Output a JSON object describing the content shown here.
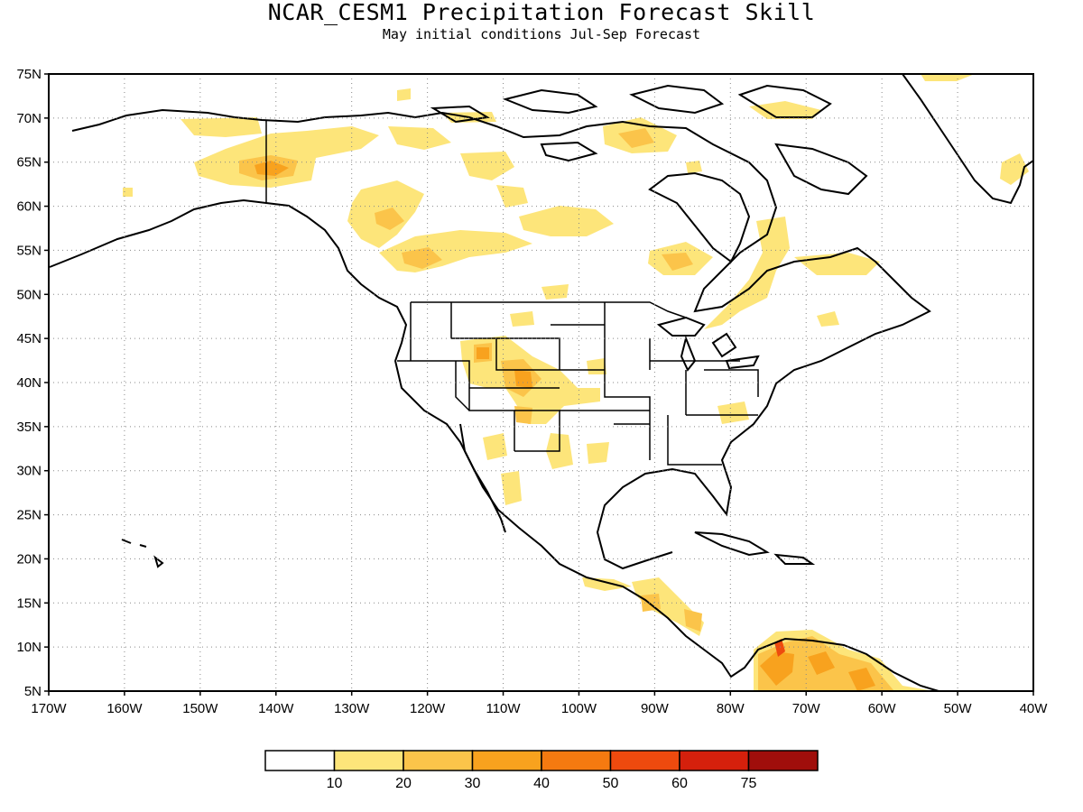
{
  "title": "NCAR_CESM1 Precipitation Forecast Skill",
  "subtitle": "May initial conditions   Jul-Sep Forecast",
  "map": {
    "lat_ticks": [
      "75N",
      "70N",
      "65N",
      "60N",
      "55N",
      "50N",
      "45N",
      "40N",
      "35N",
      "30N",
      "25N",
      "20N",
      "15N",
      "10N",
      "5N"
    ],
    "lon_ticks": [
      "170W",
      "160W",
      "150W",
      "140W",
      "130W",
      "120W",
      "110W",
      "100W",
      "90W",
      "80W",
      "70W",
      "60W",
      "50W",
      "40W"
    ],
    "lon_range": [
      -170,
      -40
    ],
    "lat_range": [
      5,
      75
    ],
    "gridlines": "dotted",
    "projection": "cylindrical"
  },
  "colorbar": {
    "labels": [
      "10",
      "20",
      "30",
      "40",
      "50",
      "60",
      "75"
    ],
    "colors": [
      "#ffffff",
      "#fde57a",
      "#fbc44a",
      "#f8a21e",
      "#f57a10",
      "#ee4a0e",
      "#d5200c",
      "#a00e0b"
    ]
  },
  "skill_regions": [
    {
      "lon": -141,
      "lat": 64,
      "level": 2
    },
    {
      "lon": -122,
      "lat": 58,
      "level": 2
    },
    {
      "lon": -118,
      "lat": 53,
      "level": 2
    },
    {
      "lon": -86,
      "lat": 53,
      "level": 2
    },
    {
      "lon": -108,
      "lat": 40,
      "level": 2
    },
    {
      "lon": -112,
      "lat": 43,
      "level": 2
    },
    {
      "lon": -89,
      "lat": 66,
      "level": 2
    },
    {
      "lon": -68,
      "lat": 8,
      "level": 3
    },
    {
      "lon": -74,
      "lat": 10,
      "level": 4
    },
    {
      "lon": -80,
      "lat": 15,
      "level": 2
    },
    {
      "lon": -112,
      "lat": 32,
      "level": 2
    }
  ]
}
